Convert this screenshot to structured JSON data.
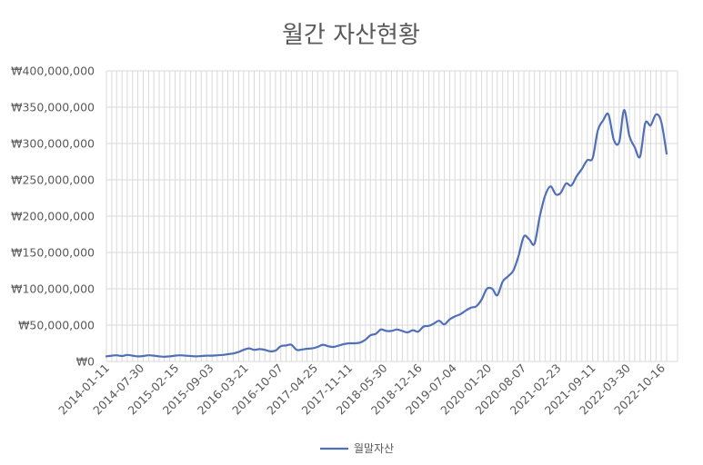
{
  "chart_data": {
    "type": "line",
    "title": "월간 자산현황",
    "xlabel": "",
    "ylabel": "",
    "ylim": [
      0,
      400000000
    ],
    "y_ticks": [
      0,
      50000000,
      100000000,
      150000000,
      200000000,
      250000000,
      300000000,
      350000000,
      400000000
    ],
    "y_tick_labels": [
      "₩0",
      "₩50,000,000",
      "₩100,000,000",
      "₩150,000,000",
      "₩200,000,000",
      "₩250,000,000",
      "₩300,000,000",
      "₩350,000,000",
      "₩400,000,000"
    ],
    "x_tick_labels": [
      "2014-01-11",
      "2014-07-30",
      "2015-02-15",
      "2015-09-03",
      "2016-03-21",
      "2016-10-07",
      "2017-04-25",
      "2017-11-11",
      "2018-05-30",
      "2018-12-16",
      "2019-07-04",
      "2020-01-20",
      "2020-08-07",
      "2021-02-23",
      "2021-09-11",
      "2022-03-30",
      "2022-10-16"
    ],
    "grid": true,
    "legend_position": "bottom",
    "series": [
      {
        "name": "월말자산",
        "color": "#4f6fb8",
        "x": [
          "2014-01-11",
          "2014-02-11",
          "2014-03-11",
          "2014-04-11",
          "2014-05-11",
          "2014-06-11",
          "2014-07-11",
          "2014-08-11",
          "2014-09-11",
          "2014-10-11",
          "2014-11-11",
          "2014-12-11",
          "2015-01-11",
          "2015-02-11",
          "2015-03-11",
          "2015-04-11",
          "2015-05-11",
          "2015-06-11",
          "2015-07-11",
          "2015-08-11",
          "2015-09-11",
          "2015-10-11",
          "2015-11-11",
          "2015-12-11",
          "2016-01-11",
          "2016-02-11",
          "2016-03-11",
          "2016-04-11",
          "2016-05-11",
          "2016-06-11",
          "2016-07-11",
          "2016-08-11",
          "2016-09-11",
          "2016-10-11",
          "2016-11-11",
          "2016-12-11",
          "2017-01-11",
          "2017-02-11",
          "2017-03-11",
          "2017-04-11",
          "2017-05-11",
          "2017-06-11",
          "2017-07-11",
          "2017-08-11",
          "2017-09-11",
          "2017-10-11",
          "2017-11-11",
          "2017-12-11",
          "2018-01-11",
          "2018-02-11",
          "2018-03-11",
          "2018-04-11",
          "2018-05-11",
          "2018-06-11",
          "2018-07-11",
          "2018-08-11",
          "2018-09-11",
          "2018-10-11",
          "2018-11-11",
          "2018-12-11",
          "2019-01-11",
          "2019-02-11",
          "2019-03-11",
          "2019-04-11",
          "2019-05-11",
          "2019-06-11",
          "2019-07-11",
          "2019-08-11",
          "2019-09-11",
          "2019-10-11",
          "2019-11-11",
          "2019-12-11",
          "2020-01-11",
          "2020-02-11",
          "2020-03-11",
          "2020-04-11",
          "2020-05-11",
          "2020-06-11",
          "2020-07-11",
          "2020-08-11",
          "2020-09-11",
          "2020-10-11",
          "2020-11-11",
          "2020-12-11",
          "2021-01-11",
          "2021-02-11",
          "2021-03-11",
          "2021-04-11",
          "2021-05-11",
          "2021-06-11",
          "2021-07-11",
          "2021-08-11",
          "2021-09-11",
          "2021-10-11",
          "2021-11-11",
          "2021-12-11",
          "2022-01-11",
          "2022-02-11",
          "2022-03-11",
          "2022-04-11",
          "2022-05-11",
          "2022-06-11",
          "2022-07-11",
          "2022-08-11",
          "2022-09-11",
          "2022-10-11",
          "2022-11-11"
        ],
        "values": [
          7000000,
          8000000,
          8500000,
          7500000,
          9000000,
          8000000,
          7000000,
          7500000,
          8500000,
          8000000,
          7000000,
          6500000,
          7000000,
          8000000,
          8500000,
          8000000,
          7500000,
          7000000,
          7500000,
          8000000,
          8000000,
          8500000,
          9000000,
          10000000,
          11000000,
          13000000,
          16000000,
          18000000,
          16000000,
          17000000,
          16000000,
          14000000,
          15000000,
          21000000,
          22000000,
          23000000,
          16000000,
          16500000,
          17500000,
          18000000,
          20000000,
          23000000,
          21000000,
          20000000,
          22000000,
          24000000,
          25000000,
          25000000,
          26000000,
          30000000,
          36000000,
          38000000,
          44000000,
          42000000,
          42000000,
          44000000,
          42000000,
          40000000,
          43000000,
          41000000,
          48000000,
          49000000,
          52000000,
          56000000,
          51000000,
          58000000,
          62000000,
          65000000,
          70000000,
          74000000,
          76000000,
          85000000,
          100000000,
          100000000,
          91000000,
          110000000,
          117000000,
          125000000,
          145000000,
          172000000,
          168000000,
          162000000,
          200000000,
          228000000,
          241000000,
          230000000,
          232000000,
          245000000,
          242000000,
          255000000,
          265000000,
          277000000,
          280000000,
          318000000,
          332000000,
          340000000,
          305000000,
          302000000,
          346000000,
          310000000,
          295000000,
          282000000,
          328000000,
          325000000,
          340000000,
          330000000,
          286000000
        ]
      }
    ]
  }
}
